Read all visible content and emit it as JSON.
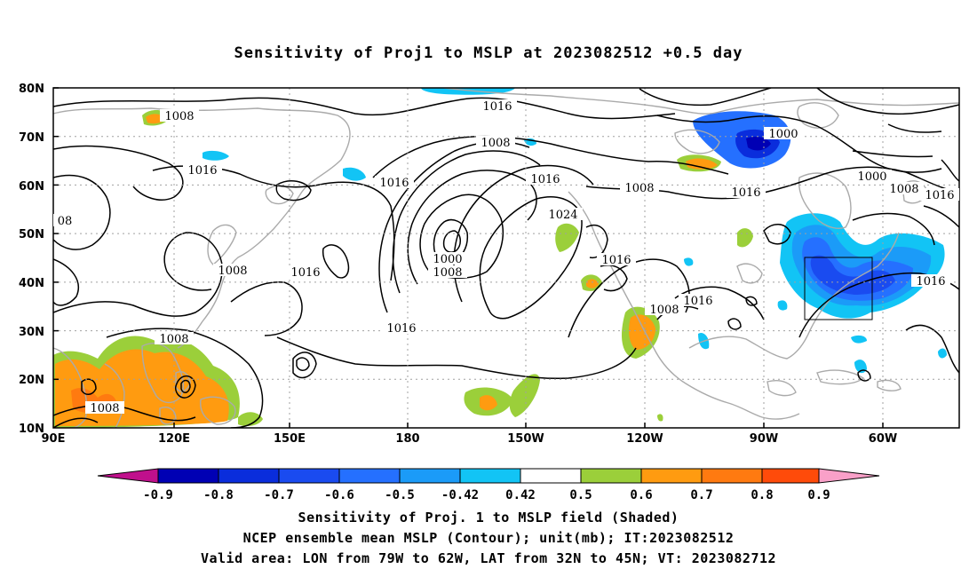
{
  "title": "Sensitivity of Proj1 to MSLP at 2023082512 +0.5 day",
  "map": {
    "lat_labels": [
      "80N",
      "70N",
      "60N",
      "50N",
      "40N",
      "30N",
      "20N",
      "10N"
    ],
    "lon_labels": [
      "90E",
      "120E",
      "150E",
      "180",
      "150W",
      "120W",
      "90W",
      "60W"
    ],
    "contour_labels": [
      "1008",
      "1016",
      "08",
      "1016",
      "1016",
      "1008",
      "1008",
      "1016",
      "1000",
      "1008",
      "1016",
      "1024",
      "1016",
      "1008",
      "1016",
      "1016",
      "1008",
      "1000",
      "1000",
      "1008",
      "1016",
      "1016",
      "1008",
      "1008",
      "1016"
    ],
    "lat_range": [
      10,
      80
    ],
    "lon_range": [
      "90E",
      "45W"
    ],
    "grid": true,
    "box_lon": [
      "79W",
      "62W"
    ],
    "box_lat": [
      "32N",
      "45N"
    ]
  },
  "colorbar": {
    "ticks": [
      "-0.9",
      "-0.8",
      "-0.7",
      "-0.6",
      "-0.5",
      "-0.42",
      "0.42",
      "0.5",
      "0.6",
      "0.7",
      "0.8",
      "0.9"
    ],
    "colors": {
      "low_tri": "#c0108c",
      "c1": "#0000b4",
      "c2": "#0a2ddc",
      "c3": "#1a4bf0",
      "c4": "#2570ff",
      "c5": "#1b9bf8",
      "c6": "#12c4f5",
      "c7": "#ffffff",
      "c8": "#9bcf3a",
      "c9": "#ff9b10",
      "c10": "#ff7a10",
      "c11": "#ff4b0a",
      "c12": "#fa0000",
      "high_tri": "#f9a0c8"
    }
  },
  "captions": {
    "line1": "Sensitivity of Proj. 1 to MSLP field (Shaded)",
    "line2": "NCEP ensemble mean MSLP (Contour); unit(mb); IT:2023082512",
    "line3": "Valid area: LON from 79W to 62W, LAT from 32N to 45N; VT: 2023082712"
  }
}
